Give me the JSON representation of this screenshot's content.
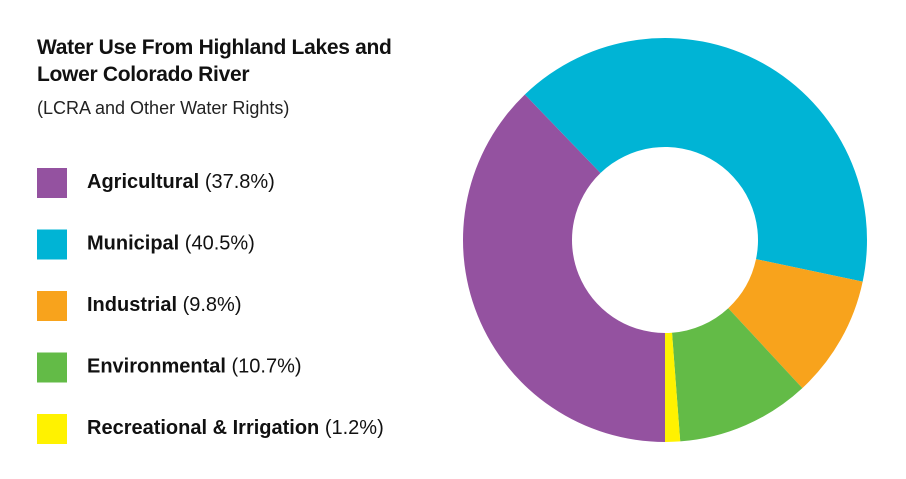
{
  "chart_data": {
    "type": "pie",
    "title": "Water Use From Highland Lakes and Lower Colorado River",
    "subtitle": "(LCRA and Other Water Rights)",
    "categories": [
      "Agricultural",
      "Municipal",
      "Industrial",
      "Environmental",
      "Recreational & Irrigation"
    ],
    "values": [
      37.8,
      40.5,
      9.8,
      10.7,
      1.2
    ],
    "value_labels": [
      "(37.8%)",
      "(40.5%)",
      "(9.8%)",
      "(10.7%)",
      "(1.2%)"
    ],
    "colors": [
      "#9452a0",
      "#00b4d5",
      "#f8a31c",
      "#63bb47",
      "#fff200"
    ]
  }
}
